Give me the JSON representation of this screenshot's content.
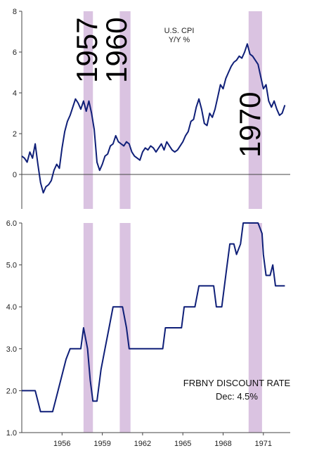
{
  "recession_color": "#d4b8dc",
  "line_color": "#0f1f78",
  "chart_data": [
    {
      "type": "line",
      "title_line1": "U.S. CPI",
      "title_line2": "Y/Y %",
      "xlim": [
        1953.0,
        1973.0
      ],
      "ylim": [
        -1.5,
        8.0
      ],
      "yticks": [
        "0",
        "2",
        "4",
        "6",
        "8"
      ],
      "ytick_values": [
        0,
        2,
        4,
        6,
        8
      ],
      "recession_labels": [
        "1957",
        "1960",
        "1970"
      ],
      "recessions": [
        [
          1957.6,
          1958.3
        ],
        [
          1960.3,
          1961.1
        ],
        [
          1969.9,
          1970.9
        ]
      ],
      "series": [
        {
          "x": [
            1953.0,
            1953.2,
            1953.4,
            1953.6,
            1953.8,
            1954.0,
            1954.2,
            1954.4,
            1954.6,
            1954.8,
            1955.0,
            1955.2,
            1955.4,
            1955.6,
            1955.8,
            1956.0,
            1956.2,
            1956.4,
            1956.6,
            1956.8,
            1957.0,
            1957.2,
            1957.4,
            1957.6,
            1957.8,
            1958.0,
            1958.2,
            1958.4,
            1958.6,
            1958.8,
            1959.0,
            1959.2,
            1959.4,
            1959.6,
            1959.8,
            1960.0,
            1960.2,
            1960.4,
            1960.6,
            1960.8,
            1961.0,
            1961.2,
            1961.4,
            1961.6,
            1961.8,
            1962.0,
            1962.2,
            1962.4,
            1962.6,
            1962.8,
            1963.0,
            1963.2,
            1963.4,
            1963.6,
            1963.8,
            1964.0,
            1964.2,
            1964.4,
            1964.6,
            1964.8,
            1965.0,
            1965.2,
            1965.4,
            1965.6,
            1965.8,
            1966.0,
            1966.2,
            1966.4,
            1966.6,
            1966.8,
            1967.0,
            1967.2,
            1967.4,
            1967.6,
            1967.8,
            1968.0,
            1968.2,
            1968.4,
            1968.6,
            1968.8,
            1969.0,
            1969.2,
            1969.4,
            1969.6,
            1969.8,
            1970.0,
            1970.2,
            1970.4,
            1970.6,
            1970.8,
            1971.0,
            1971.2,
            1971.4,
            1971.6,
            1971.8,
            1972.0,
            1972.2,
            1972.4,
            1972.6
          ],
          "y": [
            0.9,
            0.8,
            0.6,
            1.1,
            0.8,
            1.5,
            0.5,
            -0.4,
            -0.9,
            -0.6,
            -0.5,
            -0.3,
            0.2,
            0.5,
            0.3,
            1.3,
            2.1,
            2.6,
            2.9,
            3.3,
            3.7,
            3.5,
            3.2,
            3.6,
            3.1,
            3.6,
            3.0,
            2.2,
            0.6,
            0.2,
            0.5,
            0.9,
            1.0,
            1.4,
            1.5,
            1.9,
            1.6,
            1.5,
            1.4,
            1.6,
            1.5,
            1.1,
            0.9,
            0.8,
            0.7,
            1.1,
            1.3,
            1.2,
            1.4,
            1.3,
            1.1,
            1.3,
            1.5,
            1.2,
            1.6,
            1.4,
            1.2,
            1.1,
            1.2,
            1.4,
            1.6,
            1.9,
            2.1,
            2.6,
            2.7,
            3.3,
            3.7,
            3.2,
            2.5,
            2.4,
            3.0,
            2.8,
            3.2,
            3.8,
            4.4,
            4.2,
            4.7,
            5.0,
            5.3,
            5.5,
            5.6,
            5.8,
            5.7,
            6.0,
            6.4,
            5.9,
            5.8,
            5.6,
            5.4,
            4.8,
            4.2,
            4.4,
            3.6,
            3.3,
            3.6,
            3.2,
            2.9,
            3.0,
            3.4
          ]
        }
      ]
    },
    {
      "type": "line",
      "title": "FRBNY DISCOUNT RATE",
      "subtitle": "Dec: 4.5%",
      "xlim": [
        1953.0,
        1973.0
      ],
      "ylim": [
        1.0,
        6.0
      ],
      "yticks": [
        "1.0",
        "2.0",
        "3.0",
        "4.0",
        "5.0",
        "6.0"
      ],
      "ytick_values": [
        1,
        2,
        3,
        4,
        5,
        6
      ],
      "xticks": [
        "1956",
        "1959",
        "1962",
        "1965",
        "1968",
        "1971"
      ],
      "xtick_values": [
        1956,
        1959,
        1962,
        1965,
        1968,
        1971
      ],
      "series": [
        {
          "x": [
            1953.0,
            1954.0,
            1954.2,
            1954.4,
            1954.6,
            1955.3,
            1955.5,
            1955.7,
            1955.9,
            1956.1,
            1956.3,
            1956.6,
            1957.4,
            1957.6,
            1957.9,
            1958.1,
            1958.3,
            1958.6,
            1958.9,
            1959.2,
            1959.5,
            1959.8,
            1960.0,
            1960.5,
            1960.8,
            1961.0,
            1963.5,
            1963.7,
            1964.9,
            1965.1,
            1965.9,
            1966.2,
            1966.5,
            1967.3,
            1967.5,
            1967.9,
            1968.1,
            1968.3,
            1968.5,
            1968.8,
            1969.0,
            1969.3,
            1969.5,
            1970.6,
            1970.9,
            1971.0,
            1971.2,
            1971.5,
            1971.7,
            1971.9,
            1972.6
          ],
          "y": [
            2.0,
            2.0,
            1.75,
            1.5,
            1.5,
            1.5,
            1.75,
            2.0,
            2.25,
            2.5,
            2.75,
            3.0,
            3.0,
            3.5,
            3.0,
            2.25,
            1.75,
            1.75,
            2.5,
            3.0,
            3.5,
            4.0,
            4.0,
            4.0,
            3.5,
            3.0,
            3.0,
            3.5,
            3.5,
            4.0,
            4.0,
            4.5,
            4.5,
            4.5,
            4.0,
            4.0,
            4.5,
            5.0,
            5.5,
            5.5,
            5.25,
            5.5,
            6.0,
            6.0,
            5.75,
            5.25,
            4.75,
            4.75,
            5.0,
            4.5,
            4.5
          ]
        }
      ]
    }
  ]
}
